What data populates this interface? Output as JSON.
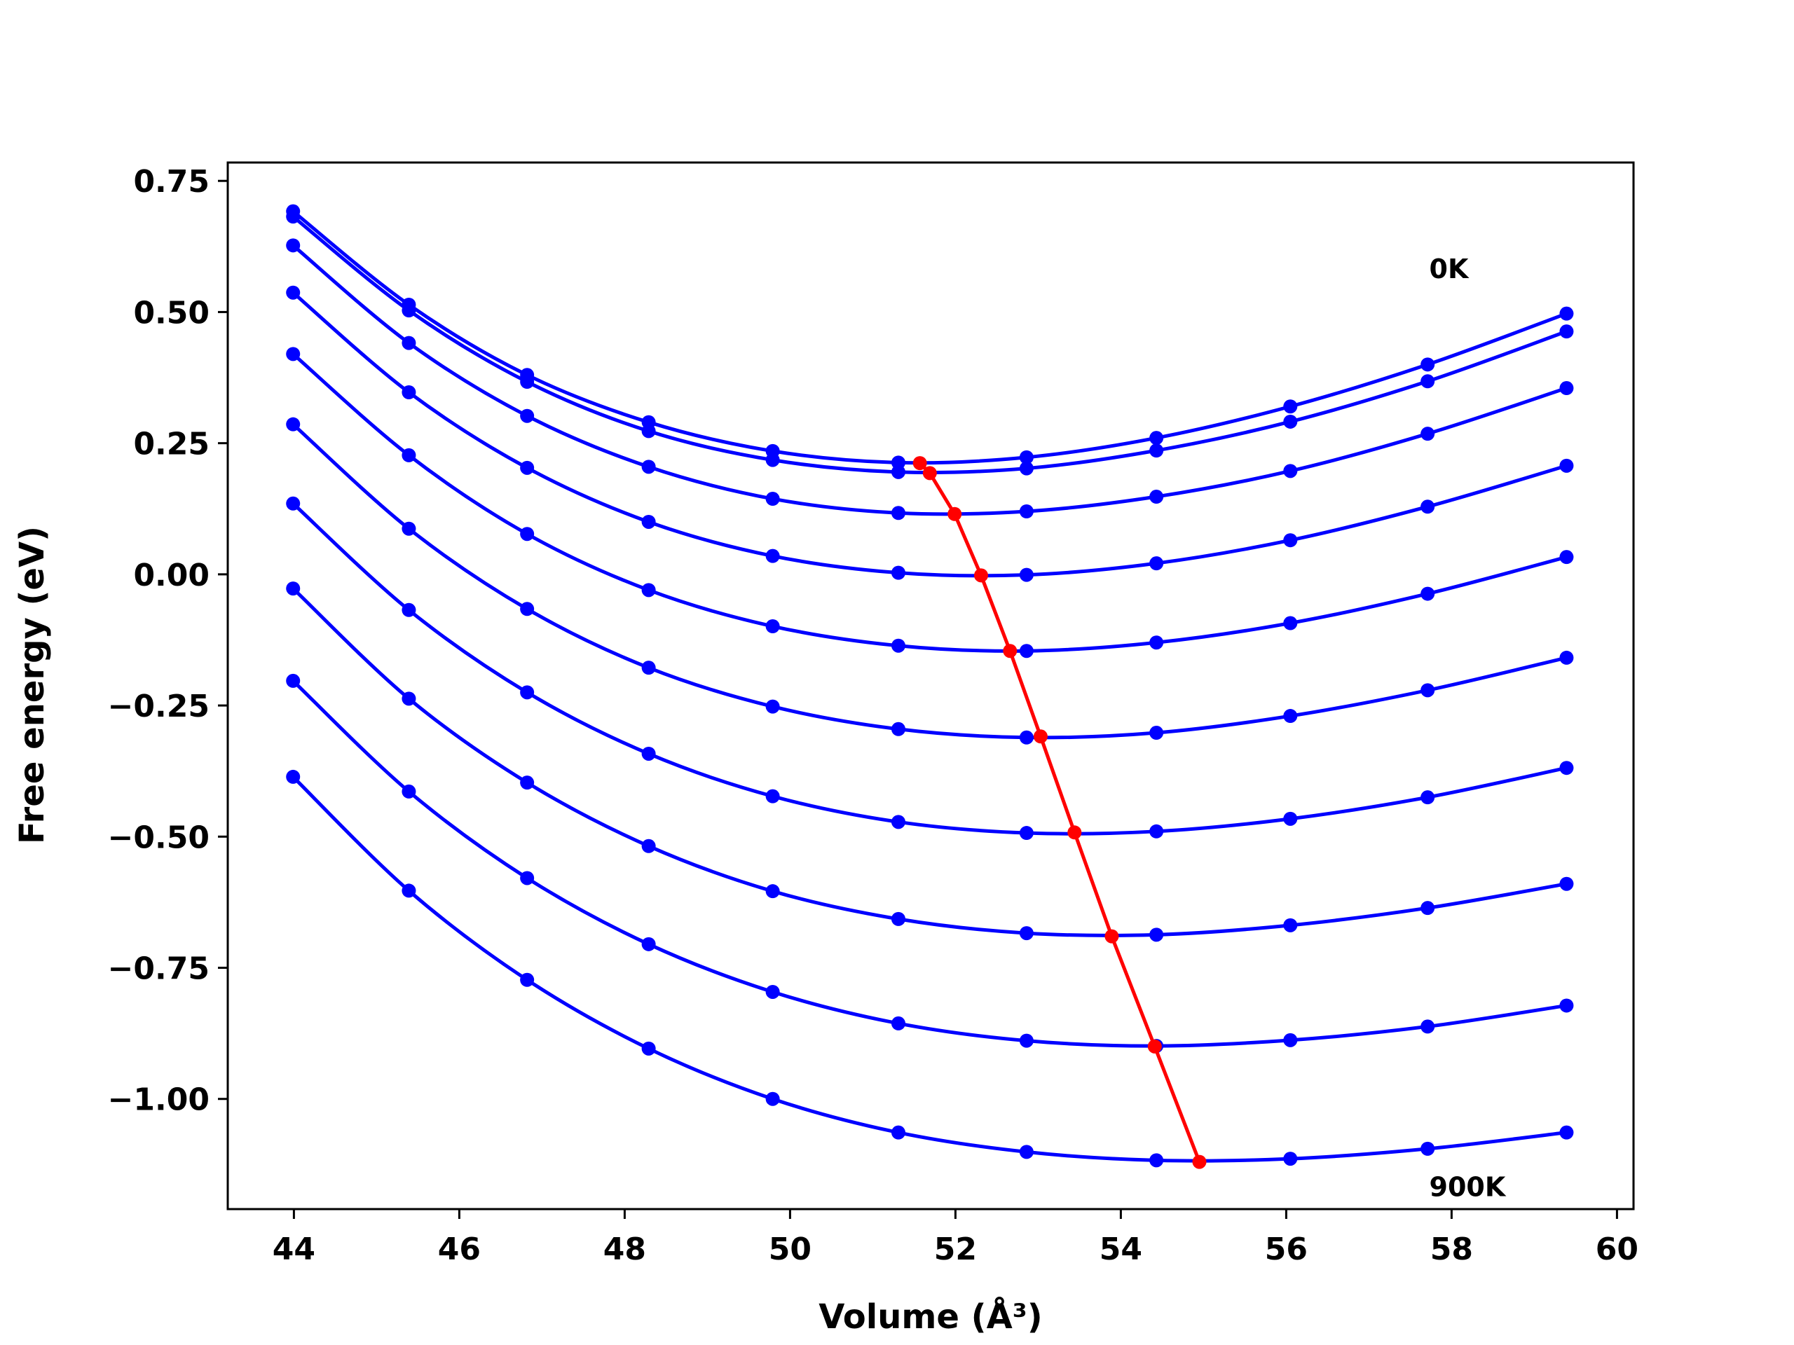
{
  "chart_data": {
    "type": "line",
    "title": "",
    "xlabel": "Volume (Å³)",
    "ylabel": "Free energy (eV)",
    "xlim": [
      43.2,
      60.2
    ],
    "ylim": [
      -1.21,
      0.785
    ],
    "xticks": [
      44,
      46,
      48,
      50,
      52,
      54,
      56,
      58,
      60
    ],
    "xtick_labels": [
      "44",
      "46",
      "48",
      "50",
      "52",
      "54",
      "56",
      "58",
      "60"
    ],
    "yticks": [
      0.75,
      0.5,
      0.25,
      0.0,
      -0.25,
      -0.5,
      -0.75,
      -1.0
    ],
    "ytick_labels": [
      "0.75",
      "0.50",
      "0.25",
      "0.00",
      "−0.25",
      "−0.50",
      "−0.75",
      "−1.00"
    ],
    "grid": false,
    "x": [
      43.99,
      45.39,
      46.82,
      48.29,
      49.79,
      51.31,
      52.86,
      54.43,
      56.05,
      57.71,
      59.39
    ],
    "series_color": "#0000ff",
    "minima_color": "#ff0000",
    "series": [
      {
        "values": [
          0.692,
          0.514,
          0.38,
          0.29,
          0.235,
          0.213,
          0.223,
          0.26,
          0.32,
          0.4,
          0.497
        ]
      },
      {
        "values": [
          0.682,
          0.503,
          0.367,
          0.273,
          0.218,
          0.195,
          0.202,
          0.236,
          0.291,
          0.368,
          0.463
        ]
      },
      {
        "values": [
          0.627,
          0.441,
          0.302,
          0.205,
          0.144,
          0.117,
          0.12,
          0.148,
          0.197,
          0.268,
          0.355
        ]
      },
      {
        "values": [
          0.537,
          0.347,
          0.203,
          0.1,
          0.035,
          0.003,
          -0.001,
          0.021,
          0.065,
          0.129,
          0.207
        ]
      },
      {
        "values": [
          0.42,
          0.227,
          0.077,
          -0.03,
          -0.099,
          -0.136,
          -0.146,
          -0.13,
          -0.093,
          -0.037,
          0.033
        ]
      },
      {
        "values": [
          0.286,
          0.087,
          -0.066,
          -0.178,
          -0.252,
          -0.295,
          -0.311,
          -0.302,
          -0.27,
          -0.221,
          -0.159
        ]
      },
      {
        "values": [
          0.135,
          -0.068,
          -0.225,
          -0.342,
          -0.423,
          -0.472,
          -0.493,
          -0.49,
          -0.466,
          -0.425,
          -0.369
        ]
      },
      {
        "values": [
          -0.027,
          -0.237,
          -0.397,
          -0.518,
          -0.604,
          -0.657,
          -0.684,
          -0.687,
          -0.669,
          -0.636,
          -0.59
        ]
      },
      {
        "values": [
          -0.203,
          -0.414,
          -0.579,
          -0.705,
          -0.796,
          -0.856,
          -0.889,
          -0.899,
          -0.888,
          -0.862,
          -0.822
        ]
      },
      {
        "values": [
          -0.386,
          -0.603,
          -0.773,
          -0.904,
          -1.0,
          -1.064,
          -1.101,
          -1.117,
          -1.114,
          -1.095,
          -1.064
        ]
      }
    ],
    "minima": {
      "x": [
        51.57,
        51.69,
        51.99,
        52.31,
        52.66,
        53.03,
        53.44,
        53.89,
        54.41,
        54.95
      ],
      "values": [
        0.212,
        0.193,
        0.115,
        -0.002,
        -0.146,
        -0.309,
        -0.492,
        -0.69,
        -0.9,
        -1.12
      ]
    },
    "annotations": [
      {
        "text": "0K",
        "x": 57.73,
        "y": 0.565
      },
      {
        "text": "900K",
        "x": 57.73,
        "y": -1.185
      }
    ]
  }
}
